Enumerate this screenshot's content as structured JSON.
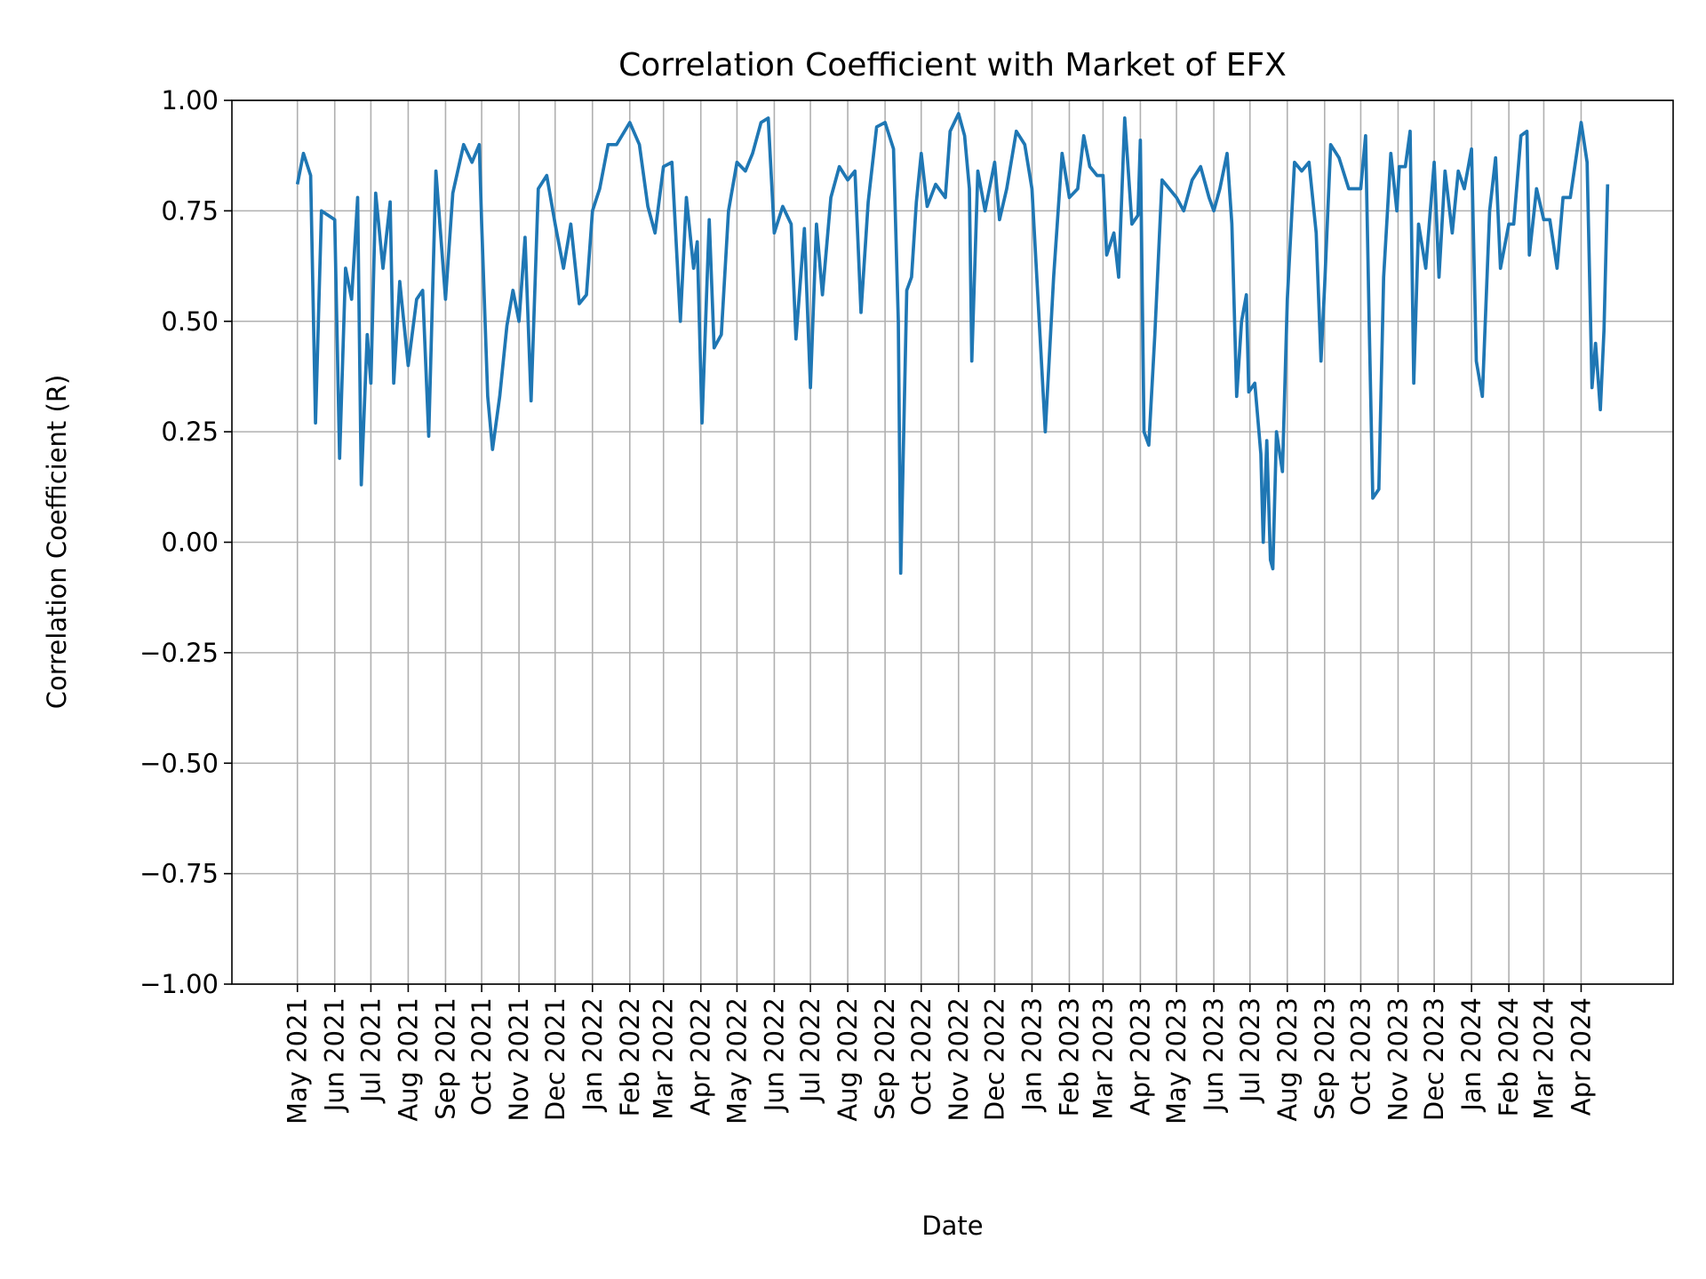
{
  "chart_data": {
    "type": "line",
    "title": "Correlation Coefficient with Market of EFX",
    "xlabel": "Date",
    "ylabel": "Correlation Coefficient (R)",
    "ylim": [
      -1.0,
      1.0
    ],
    "yticks": [
      -1.0,
      -0.75,
      -0.5,
      -0.25,
      0.0,
      0.25,
      0.5,
      0.75,
      1.0
    ],
    "ytick_labels": [
      "−1.00",
      "−0.75",
      "−0.50",
      "−0.25",
      "0.00",
      "0.25",
      "0.50",
      "0.75",
      "1.00"
    ],
    "xticks": [
      "2021-05-01",
      "2021-06-01",
      "2021-07-01",
      "2021-08-01",
      "2021-09-01",
      "2021-10-01",
      "2021-11-01",
      "2021-12-01",
      "2022-01-01",
      "2022-02-01",
      "2022-03-01",
      "2022-04-01",
      "2022-05-01",
      "2022-06-01",
      "2022-07-01",
      "2022-08-01",
      "2022-09-01",
      "2022-10-01",
      "2022-11-01",
      "2022-12-01",
      "2023-01-01",
      "2023-02-01",
      "2023-03-01",
      "2023-04-01",
      "2023-05-01",
      "2023-06-01",
      "2023-07-01",
      "2023-08-01",
      "2023-09-01",
      "2023-10-01",
      "2023-11-01",
      "2023-12-01",
      "2024-01-01",
      "2024-02-01",
      "2024-03-01",
      "2024-04-01"
    ],
    "xtick_labels": [
      "May 2021",
      "Jun 2021",
      "Jul 2021",
      "Aug 2021",
      "Sep 2021",
      "Oct 2021",
      "Nov 2021",
      "Dec 2021",
      "Jan 2022",
      "Feb 2022",
      "Mar 2022",
      "Apr 2022",
      "May 2022",
      "Jun 2022",
      "Jul 2022",
      "Aug 2022",
      "Sep 2022",
      "Oct 2022",
      "Nov 2022",
      "Dec 2022",
      "Jan 2023",
      "Feb 2023",
      "Mar 2023",
      "Apr 2023",
      "May 2023",
      "Jun 2023",
      "Jul 2023",
      "Aug 2023",
      "Sep 2023",
      "Oct 2023",
      "Nov 2023",
      "Dec 2023",
      "Jan 2024",
      "Feb 2024",
      "Mar 2024",
      "Apr 2024"
    ],
    "grid": true,
    "line_color": "#1f77b4",
    "points": [
      [
        "2021-05-01",
        0.81
      ],
      [
        "2021-05-06",
        0.88
      ],
      [
        "2021-05-12",
        0.83
      ],
      [
        "2021-05-16",
        0.27
      ],
      [
        "2021-05-21",
        0.75
      ],
      [
        "2021-06-01",
        0.73
      ],
      [
        "2021-06-05",
        0.19
      ],
      [
        "2021-06-10",
        0.62
      ],
      [
        "2021-06-15",
        0.55
      ],
      [
        "2021-06-20",
        0.78
      ],
      [
        "2021-06-23",
        0.13
      ],
      [
        "2021-06-28",
        0.47
      ],
      [
        "2021-07-01",
        0.36
      ],
      [
        "2021-07-05",
        0.79
      ],
      [
        "2021-07-11",
        0.62
      ],
      [
        "2021-07-17",
        0.77
      ],
      [
        "2021-07-20",
        0.36
      ],
      [
        "2021-07-25",
        0.59
      ],
      [
        "2021-08-01",
        0.4
      ],
      [
        "2021-08-08",
        0.55
      ],
      [
        "2021-08-13",
        0.57
      ],
      [
        "2021-08-18",
        0.24
      ],
      [
        "2021-08-24",
        0.84
      ],
      [
        "2021-09-01",
        0.55
      ],
      [
        "2021-09-07",
        0.79
      ],
      [
        "2021-09-16",
        0.9
      ],
      [
        "2021-09-23",
        0.86
      ],
      [
        "2021-09-29",
        0.9
      ],
      [
        "2021-10-01",
        0.72
      ],
      [
        "2021-10-06",
        0.33
      ],
      [
        "2021-10-10",
        0.21
      ],
      [
        "2021-10-16",
        0.33
      ],
      [
        "2021-10-22",
        0.49
      ],
      [
        "2021-10-27",
        0.57
      ],
      [
        "2021-11-01",
        0.5
      ],
      [
        "2021-11-06",
        0.69
      ],
      [
        "2021-11-11",
        0.32
      ],
      [
        "2021-11-17",
        0.8
      ],
      [
        "2021-11-24",
        0.83
      ],
      [
        "2021-12-01",
        0.72
      ],
      [
        "2021-12-08",
        0.62
      ],
      [
        "2021-12-14",
        0.72
      ],
      [
        "2021-12-21",
        0.54
      ],
      [
        "2021-12-27",
        0.56
      ],
      [
        "2022-01-01",
        0.75
      ],
      [
        "2022-01-07",
        0.8
      ],
      [
        "2022-01-14",
        0.9
      ],
      [
        "2022-01-21",
        0.9
      ],
      [
        "2022-02-01",
        0.95
      ],
      [
        "2022-02-09",
        0.9
      ],
      [
        "2022-02-16",
        0.76
      ],
      [
        "2022-02-22",
        0.7
      ],
      [
        "2022-03-01",
        0.85
      ],
      [
        "2022-03-08",
        0.86
      ],
      [
        "2022-03-15",
        0.5
      ],
      [
        "2022-03-20",
        0.78
      ],
      [
        "2022-03-26",
        0.62
      ],
      [
        "2022-03-29",
        0.68
      ],
      [
        "2022-04-02",
        0.27
      ],
      [
        "2022-04-08",
        0.73
      ],
      [
        "2022-04-12",
        0.44
      ],
      [
        "2022-04-18",
        0.47
      ],
      [
        "2022-04-24",
        0.75
      ],
      [
        "2022-05-01",
        0.86
      ],
      [
        "2022-05-08",
        0.84
      ],
      [
        "2022-05-14",
        0.88
      ],
      [
        "2022-05-21",
        0.95
      ],
      [
        "2022-05-27",
        0.96
      ],
      [
        "2022-06-01",
        0.7
      ],
      [
        "2022-06-08",
        0.76
      ],
      [
        "2022-06-15",
        0.72
      ],
      [
        "2022-06-19",
        0.46
      ],
      [
        "2022-06-26",
        0.71
      ],
      [
        "2022-07-01",
        0.35
      ],
      [
        "2022-07-06",
        0.72
      ],
      [
        "2022-07-11",
        0.56
      ],
      [
        "2022-07-18",
        0.78
      ],
      [
        "2022-07-25",
        0.85
      ],
      [
        "2022-08-01",
        0.82
      ],
      [
        "2022-08-07",
        0.84
      ],
      [
        "2022-08-12",
        0.52
      ],
      [
        "2022-08-18",
        0.77
      ],
      [
        "2022-08-25",
        0.94
      ],
      [
        "2022-09-01",
        0.95
      ],
      [
        "2022-09-08",
        0.89
      ],
      [
        "2022-09-12",
        0.5
      ],
      [
        "2022-09-14",
        -0.07
      ],
      [
        "2022-09-19",
        0.57
      ],
      [
        "2022-09-23",
        0.6
      ],
      [
        "2022-09-27",
        0.77
      ],
      [
        "2022-10-01",
        0.88
      ],
      [
        "2022-10-06",
        0.76
      ],
      [
        "2022-10-13",
        0.81
      ],
      [
        "2022-10-21",
        0.78
      ],
      [
        "2022-10-25",
        0.93
      ],
      [
        "2022-11-01",
        0.97
      ],
      [
        "2022-11-06",
        0.92
      ],
      [
        "2022-11-10",
        0.8
      ],
      [
        "2022-11-12",
        0.41
      ],
      [
        "2022-11-17",
        0.84
      ],
      [
        "2022-11-23",
        0.75
      ],
      [
        "2022-12-01",
        0.86
      ],
      [
        "2022-12-05",
        0.73
      ],
      [
        "2022-12-11",
        0.8
      ],
      [
        "2022-12-19",
        0.93
      ],
      [
        "2022-12-26",
        0.9
      ],
      [
        "2023-01-01",
        0.8
      ],
      [
        "2023-01-07",
        0.5
      ],
      [
        "2023-01-12",
        0.25
      ],
      [
        "2023-01-19",
        0.6
      ],
      [
        "2023-01-26",
        0.88
      ],
      [
        "2023-02-01",
        0.78
      ],
      [
        "2023-02-08",
        0.8
      ],
      [
        "2023-02-13",
        0.92
      ],
      [
        "2023-02-18",
        0.85
      ],
      [
        "2023-02-24",
        0.83
      ],
      [
        "2023-03-01",
        0.83
      ],
      [
        "2023-03-04",
        0.65
      ],
      [
        "2023-03-10",
        0.7
      ],
      [
        "2023-03-14",
        0.6
      ],
      [
        "2023-03-19",
        0.96
      ],
      [
        "2023-03-25",
        0.72
      ],
      [
        "2023-03-30",
        0.74
      ],
      [
        "2023-04-01",
        0.91
      ],
      [
        "2023-04-04",
        0.25
      ],
      [
        "2023-04-08",
        0.22
      ],
      [
        "2023-04-13",
        0.47
      ],
      [
        "2023-04-19",
        0.82
      ],
      [
        "2023-05-01",
        0.78
      ],
      [
        "2023-05-07",
        0.75
      ],
      [
        "2023-05-14",
        0.82
      ],
      [
        "2023-05-21",
        0.85
      ],
      [
        "2023-05-28",
        0.78
      ],
      [
        "2023-06-01",
        0.75
      ],
      [
        "2023-06-06",
        0.8
      ],
      [
        "2023-06-12",
        0.88
      ],
      [
        "2023-06-16",
        0.72
      ],
      [
        "2023-06-20",
        0.33
      ],
      [
        "2023-06-24",
        0.5
      ],
      [
        "2023-06-28",
        0.56
      ],
      [
        "2023-06-30",
        0.34
      ],
      [
        "2023-07-05",
        0.36
      ],
      [
        "2023-07-10",
        0.2
      ],
      [
        "2023-07-12",
        0.0
      ],
      [
        "2023-07-15",
        0.23
      ],
      [
        "2023-07-18",
        -0.04
      ],
      [
        "2023-07-20",
        -0.06
      ],
      [
        "2023-07-23",
        0.25
      ],
      [
        "2023-07-28",
        0.16
      ],
      [
        "2023-08-01",
        0.55
      ],
      [
        "2023-08-07",
        0.86
      ],
      [
        "2023-08-13",
        0.84
      ],
      [
        "2023-08-19",
        0.86
      ],
      [
        "2023-08-25",
        0.7
      ],
      [
        "2023-08-29",
        0.41
      ],
      [
        "2023-09-01",
        0.58
      ],
      [
        "2023-09-06",
        0.9
      ],
      [
        "2023-09-13",
        0.87
      ],
      [
        "2023-09-21",
        0.8
      ],
      [
        "2023-10-01",
        0.8
      ],
      [
        "2023-10-05",
        0.92
      ],
      [
        "2023-10-08",
        0.5
      ],
      [
        "2023-10-11",
        0.1
      ],
      [
        "2023-10-16",
        0.12
      ],
      [
        "2023-10-20",
        0.6
      ],
      [
        "2023-10-26",
        0.88
      ],
      [
        "2023-10-31",
        0.75
      ],
      [
        "2023-11-02",
        0.85
      ],
      [
        "2023-11-07",
        0.85
      ],
      [
        "2023-11-11",
        0.93
      ],
      [
        "2023-11-14",
        0.36
      ],
      [
        "2023-11-18",
        0.72
      ],
      [
        "2023-11-24",
        0.62
      ],
      [
        "2023-12-01",
        0.86
      ],
      [
        "2023-12-05",
        0.6
      ],
      [
        "2023-12-10",
        0.84
      ],
      [
        "2023-12-16",
        0.7
      ],
      [
        "2023-12-21",
        0.84
      ],
      [
        "2023-12-26",
        0.8
      ],
      [
        "2024-01-01",
        0.89
      ],
      [
        "2024-01-05",
        0.41
      ],
      [
        "2024-01-10",
        0.33
      ],
      [
        "2024-01-16",
        0.75
      ],
      [
        "2024-01-21",
        0.87
      ],
      [
        "2024-01-25",
        0.62
      ],
      [
        "2024-02-01",
        0.72
      ],
      [
        "2024-02-05",
        0.72
      ],
      [
        "2024-02-11",
        0.92
      ],
      [
        "2024-02-16",
        0.93
      ],
      [
        "2024-02-18",
        0.65
      ],
      [
        "2024-02-24",
        0.8
      ],
      [
        "2024-03-01",
        0.73
      ],
      [
        "2024-03-06",
        0.73
      ],
      [
        "2024-03-12",
        0.62
      ],
      [
        "2024-03-17",
        0.78
      ],
      [
        "2024-03-23",
        0.78
      ],
      [
        "2024-04-01",
        0.95
      ],
      [
        "2024-04-06",
        0.86
      ],
      [
        "2024-04-10",
        0.35
      ],
      [
        "2024-04-13",
        0.45
      ],
      [
        "2024-04-17",
        0.3
      ],
      [
        "2024-04-20",
        0.48
      ],
      [
        "2024-04-23",
        0.81
      ]
    ]
  }
}
